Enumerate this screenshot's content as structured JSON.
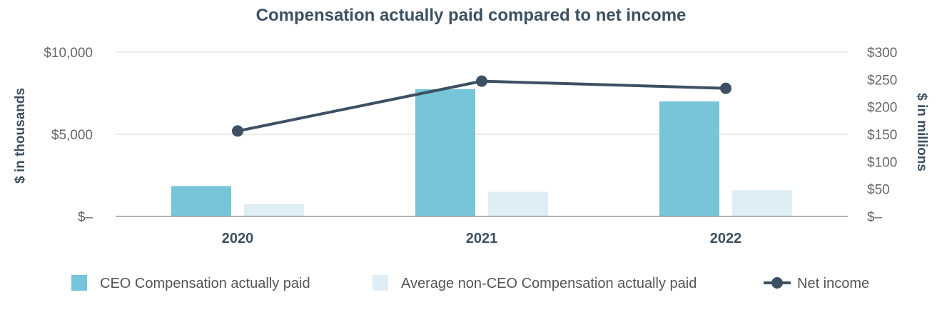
{
  "chart_data": {
    "type": "bar+line",
    "title": "Compensation actually paid compared to net income",
    "categories": [
      "2020",
      "2021",
      "2022"
    ],
    "left_axis": {
      "label": "$ in thousands",
      "range": [
        0,
        10000
      ],
      "ticks": [
        0,
        5000,
        10000
      ],
      "tick_labels": [
        "$–",
        "$5,000",
        "$10,000"
      ]
    },
    "right_axis": {
      "label": "$ in millions",
      "range": [
        0,
        300
      ],
      "ticks": [
        0,
        50,
        100,
        150,
        200,
        250,
        300
      ],
      "tick_labels": [
        "$–",
        "$50",
        "$100",
        "$150",
        "$200",
        "$250",
        "$300"
      ]
    },
    "series": [
      {
        "name": "CEO Compensation actually paid",
        "type": "bar",
        "axis": "left",
        "color": "#76c5d8",
        "values": [
          1850,
          7750,
          7000
        ]
      },
      {
        "name": "Average non-CEO Compensation actually paid",
        "type": "bar",
        "axis": "left",
        "color": "#dfeef4",
        "values": [
          750,
          1500,
          1600
        ]
      },
      {
        "name": "Net income",
        "type": "line",
        "axis": "right",
        "color": "#3d5062",
        "values": [
          156,
          247,
          234
        ]
      }
    ],
    "grid": true,
    "legend_position": "bottom"
  }
}
